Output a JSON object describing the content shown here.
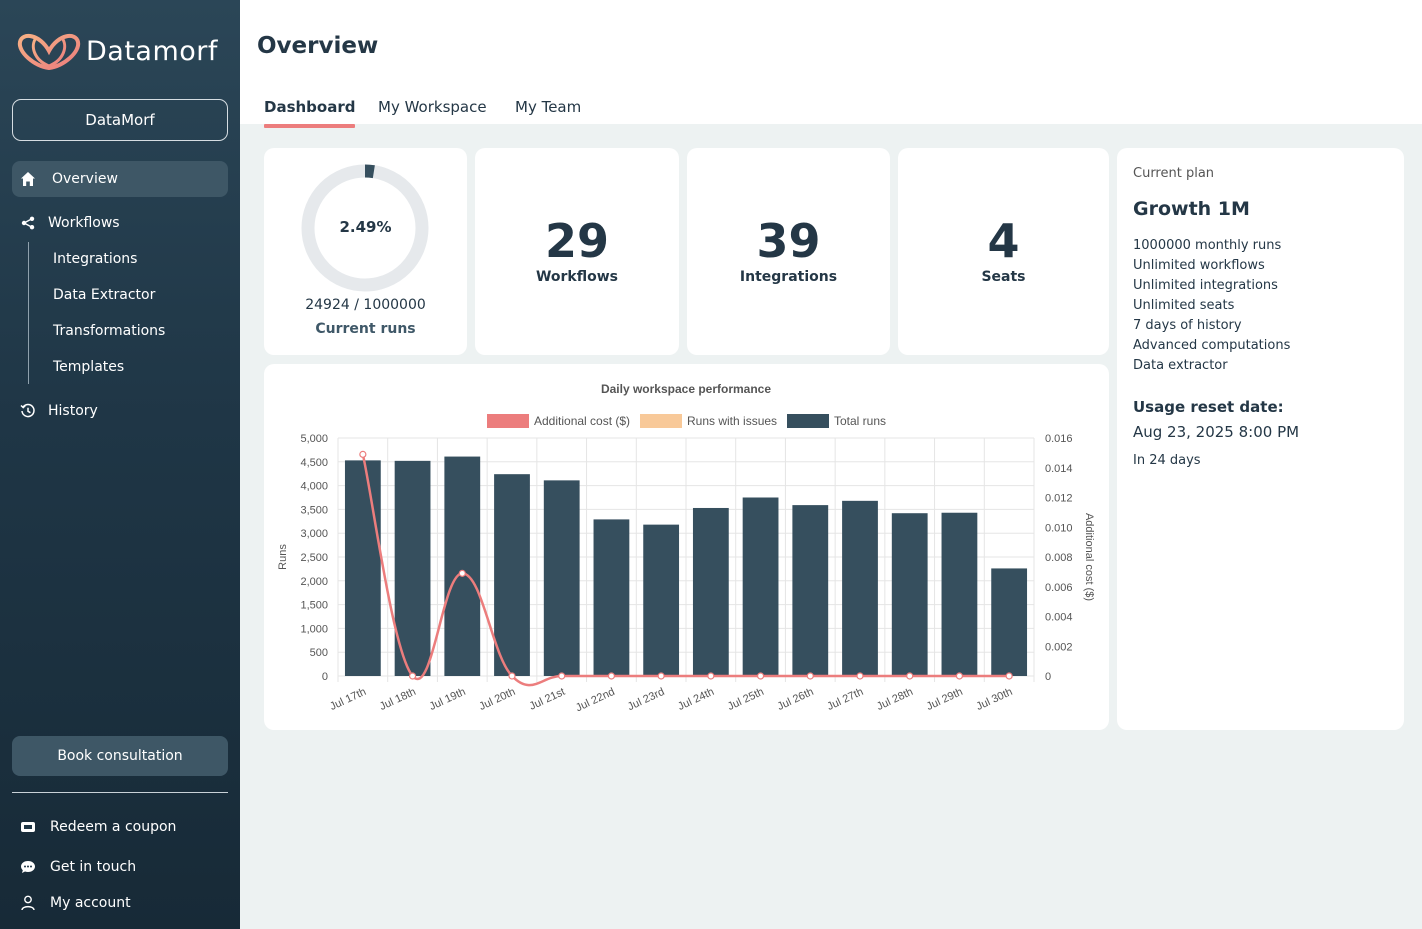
{
  "app": {
    "name": "Datamorf"
  },
  "sidebar": {
    "org_button": "DataMorf",
    "nav": [
      {
        "label": "Overview",
        "icon": "home-icon",
        "active": true
      },
      {
        "label": "Workflows",
        "icon": "share-icon"
      },
      {
        "label": "History",
        "icon": "history-icon"
      }
    ],
    "workflow_subitems": [
      "Integrations",
      "Data Extractor",
      "Transformations",
      "Templates"
    ],
    "book_button": "Book consultation",
    "bottom": [
      {
        "label": "Redeem a coupon",
        "icon": "ticket-icon"
      },
      {
        "label": "Get in touch",
        "icon": "chat-icon"
      },
      {
        "label": "My account",
        "icon": "user-icon"
      }
    ]
  },
  "header": {
    "title": "Overview",
    "tabs": [
      "Dashboard",
      "My Workspace",
      "My Team"
    ],
    "active_tab": "Dashboard"
  },
  "runs": {
    "percent": "2.49%",
    "percent_value": 2.49,
    "current": "24924",
    "separator": "/",
    "limit": "1000000",
    "label": "Current runs"
  },
  "stats": [
    {
      "value": "29",
      "label": "Workflows"
    },
    {
      "value": "39",
      "label": "Integrations"
    },
    {
      "value": "4",
      "label": "Seats"
    }
  ],
  "plan": {
    "label": "Current plan",
    "name": "Growth 1M",
    "features": [
      "1000000 monthly runs",
      "Unlimited workflows",
      "Unlimited integrations",
      "Unlimited seats",
      "7 days of history",
      "Advanced computations",
      "Data extractor"
    ],
    "reset_title": "Usage reset date:",
    "reset_date": "Aug 23, 2025 8:00 PM",
    "reset_in": "In 24 days"
  },
  "colors": {
    "bar": "#364f5e",
    "cost_line": "#ec7d7d",
    "issues": "#f8c999",
    "accent": "#ec7d7d",
    "donut_track": "#e6e9ec"
  },
  "chart_data": {
    "type": "bar",
    "title": "Daily workspace performance",
    "categories": [
      "Jul 17th",
      "Jul 18th",
      "Jul 19th",
      "Jul 20th",
      "Jul 21st",
      "Jul 22nd",
      "Jul 23rd",
      "Jul 24th",
      "Jul 25th",
      "Jul 26th",
      "Jul 27th",
      "Jul 28th",
      "Jul 29th",
      "Jul 30th"
    ],
    "series": [
      {
        "name": "Additional cost ($)",
        "type": "line",
        "axis": "right",
        "values": [
          0.0149,
          0,
          0.0069,
          0,
          0,
          0,
          0,
          0,
          0,
          0,
          0,
          0,
          0,
          0
        ]
      },
      {
        "name": "Runs with issues",
        "type": "bar",
        "axis": "left",
        "values": [
          0,
          0,
          0,
          0,
          0,
          0,
          0,
          0,
          0,
          0,
          0,
          0,
          0,
          0
        ]
      },
      {
        "name": "Total runs",
        "type": "bar",
        "axis": "left",
        "values": [
          4530,
          4520,
          4610,
          4240,
          4110,
          3290,
          3180,
          3530,
          3750,
          3590,
          3680,
          3420,
          3430,
          2260
        ]
      }
    ],
    "ylabel": "Runs",
    "ylim": [
      0,
      5000
    ],
    "yticks": [
      "5,000",
      "4,500",
      "4,000",
      "3,500",
      "3,000",
      "2,500",
      "2,000",
      "1,500",
      "1,000",
      "500",
      "0"
    ],
    "y2label": "Additional cost ($)",
    "y2lim": [
      0,
      0.016
    ],
    "y2ticks": [
      "0.016",
      "0.014",
      "0.012",
      "0.010",
      "0.008",
      "0.006",
      "0.004",
      "0.002",
      "0"
    ],
    "grid": true,
    "legend": "top"
  }
}
